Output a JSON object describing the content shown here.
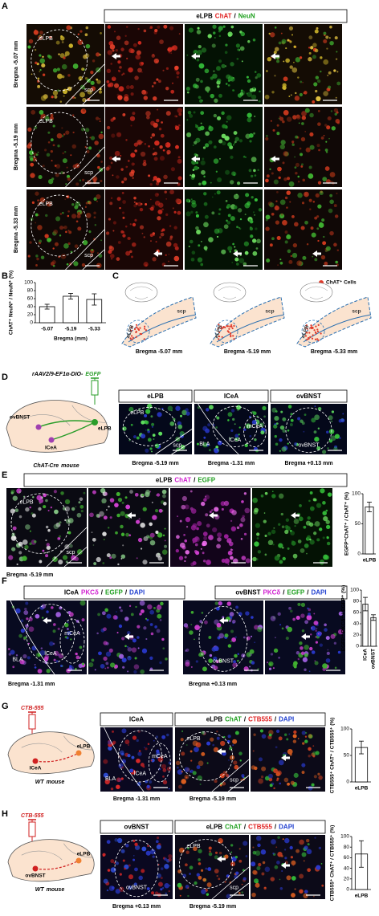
{
  "panels": {
    "A": {
      "letter": "A",
      "header": [
        {
          "text": "eLPB"
        },
        {
          "text": "ChAT",
          "color": "#e02020"
        },
        {
          "text": "/"
        },
        {
          "text": "NeuN",
          "color": "#1fa01f"
        }
      ],
      "rows": [
        "Bregma -5.07 mm",
        "Bregma -5.19 mm",
        "Bregma -5.33 mm"
      ],
      "labels": [
        "eLPB",
        "scp"
      ]
    },
    "B": {
      "letter": "B",
      "chart": {
        "type": "bar",
        "ylabel": "ChAT⁺ NeuN⁺ / NeuN⁺ (%)",
        "xlabel": "Bregma (mm)",
        "categories": [
          "-5.07",
          "-5.19",
          "-5.33"
        ],
        "values": [
          40,
          66,
          58
        ],
        "errors": [
          6,
          7,
          14
        ],
        "ylim": [
          0,
          100
        ],
        "yticks": [
          0,
          20,
          40,
          60,
          80,
          100
        ]
      }
    },
    "C": {
      "letter": "C",
      "legend": "ChAT⁺ Cells",
      "labels": [
        "eLPB",
        "scp"
      ],
      "captions": [
        "Bregma -5.07 mm",
        "Bregma -5.19 mm",
        "Bregma -5.33 mm"
      ]
    },
    "D": {
      "letter": "D",
      "vector": [
        {
          "text": "rAAV2/9-EF1α-DIO-",
          "italic": true
        },
        {
          "text": "EGFP",
          "color": "#2a9d2a",
          "italic": true
        }
      ],
      "regions": [
        "ovBNST",
        "lCeA",
        "eLPB"
      ],
      "mouse": [
        {
          "text": "ChAT-Cre",
          "italic": true
        },
        {
          "text": "mouse",
          "italic": true
        }
      ],
      "headers": [
        [
          {
            "text": "eLPB"
          }
        ],
        [
          {
            "text": "lCeA"
          }
        ],
        [
          {
            "text": "ovBNST"
          }
        ]
      ],
      "image_labels": [
        [
          "eLPB",
          "scp"
        ],
        [
          "BLA",
          "lCeA",
          "mCeA"
        ],
        [
          "ovBNST"
        ]
      ],
      "captions": [
        "Bregma -5.19 mm",
        "Bregma -1.31 mm",
        "Bregma +0.13 mm"
      ]
    },
    "E": {
      "letter": "E",
      "header": [
        {
          "text": "eLPB"
        },
        {
          "text": "ChAT",
          "color": "#d020d0"
        },
        {
          "text": "/"
        },
        {
          "text": "EGFP",
          "color": "#1fa01f"
        }
      ],
      "labels": [
        "eLPB",
        "scp"
      ],
      "caption": "Bregma -5.19 mm",
      "chart": {
        "type": "bar",
        "ylabel": "EGFP⁺ChAT⁺ / ChAT⁺ (%)",
        "categories": [
          "eLPB"
        ],
        "values": [
          78
        ],
        "errors": [
          8
        ],
        "ylim": [
          0,
          100
        ],
        "yticks": [
          0,
          50,
          100
        ]
      }
    },
    "F": {
      "letter": "F",
      "headers": [
        [
          {
            "text": "lCeA"
          },
          {
            "text": "PKCδ",
            "color": "#d020d0"
          },
          {
            "text": "/"
          },
          {
            "text": "EGFP",
            "color": "#1fa01f"
          },
          {
            "text": "/"
          },
          {
            "text": "DAPI",
            "color": "#2040d0"
          }
        ],
        [
          {
            "text": "ovBNST"
          },
          {
            "text": "PKCδ",
            "color": "#d020d0"
          },
          {
            "text": "/"
          },
          {
            "text": "EGFP",
            "color": "#1fa01f"
          },
          {
            "text": "/"
          },
          {
            "text": "DAPI",
            "color": "#2040d0"
          }
        ]
      ],
      "image_labels": [
        [
          "BLA",
          "lCeA",
          "mCeA"
        ],
        [
          "ovBNST"
        ]
      ],
      "captions": [
        "Bregma -1.31 mm",
        "Bregma +0.13 mm"
      ],
      "chart": {
        "type": "bar",
        "ylabel": "EGFP⁺ PKCδ⁺ / EGFP⁺ (%)",
        "categories": [
          "lCeA",
          "ovBNST"
        ],
        "values": [
          75,
          51
        ],
        "errors": [
          12,
          5
        ],
        "ylim": [
          0,
          100
        ],
        "yticks": [
          0,
          20,
          40,
          60,
          80,
          100
        ]
      }
    },
    "G": {
      "letter": "G",
      "tracer": "CTB-555",
      "regions": [
        "lCeA",
        "eLPB"
      ],
      "mouse": [
        {
          "text": "WT",
          "italic": true
        },
        {
          "text": "mouse",
          "italic": true
        }
      ],
      "headers": [
        [
          {
            "text": "lCeA"
          }
        ],
        [
          {
            "text": "eLPB"
          },
          {
            "text": "ChAT",
            "color": "#1fa01f"
          },
          {
            "text": "/"
          },
          {
            "text": "CTB555",
            "color": "#e02020"
          },
          {
            "text": "/"
          },
          {
            "text": "DAPI",
            "color": "#2040d0"
          }
        ]
      ],
      "image_labels": [
        [
          "BLA",
          "lCeA",
          "mCeA"
        ],
        [
          "eLPB",
          "scp"
        ]
      ],
      "captions": [
        "Bregma -1.31 mm",
        "Bregma -5.19 mm"
      ],
      "chart": {
        "type": "bar",
        "ylabel": "CTB555⁺ ChAT⁺ / CTB555⁺ (%)",
        "categories": [
          "eLPB"
        ],
        "values": [
          65
        ],
        "errors": [
          12
        ],
        "ylim": [
          0,
          100
        ],
        "yticks": [
          0,
          50,
          100
        ]
      }
    },
    "H": {
      "letter": "H",
      "tracer": "CTB-555",
      "regions": [
        "ovBNST",
        "eLPB"
      ],
      "mouse": [
        {
          "text": "WT",
          "italic": true
        },
        {
          "text": "mouse",
          "italic": true
        }
      ],
      "headers": [
        [
          {
            "text": "ovBNST"
          }
        ],
        [
          {
            "text": "eLPB"
          },
          {
            "text": "ChAT",
            "color": "#1fa01f"
          },
          {
            "text": "/"
          },
          {
            "text": "CTB555",
            "color": "#e02020"
          },
          {
            "text": "/"
          },
          {
            "text": "DAPI",
            "color": "#2040d0"
          }
        ]
      ],
      "image_labels": [
        [
          "ovBNST"
        ],
        [
          "eLPB",
          "scp"
        ]
      ],
      "captions": [
        "Bregma +0.13 mm",
        "Bregma -5.19 mm"
      ],
      "chart": {
        "type": "bar",
        "ylabel": "CTB555⁺ ChAT⁺ / CTB555⁺ (%)",
        "categories": [
          "eLPB"
        ],
        "values": [
          67
        ],
        "errors": [
          25
        ],
        "ylim": [
          0,
          100
        ],
        "yticks": [
          0,
          20,
          40,
          60,
          80,
          100
        ]
      }
    }
  }
}
